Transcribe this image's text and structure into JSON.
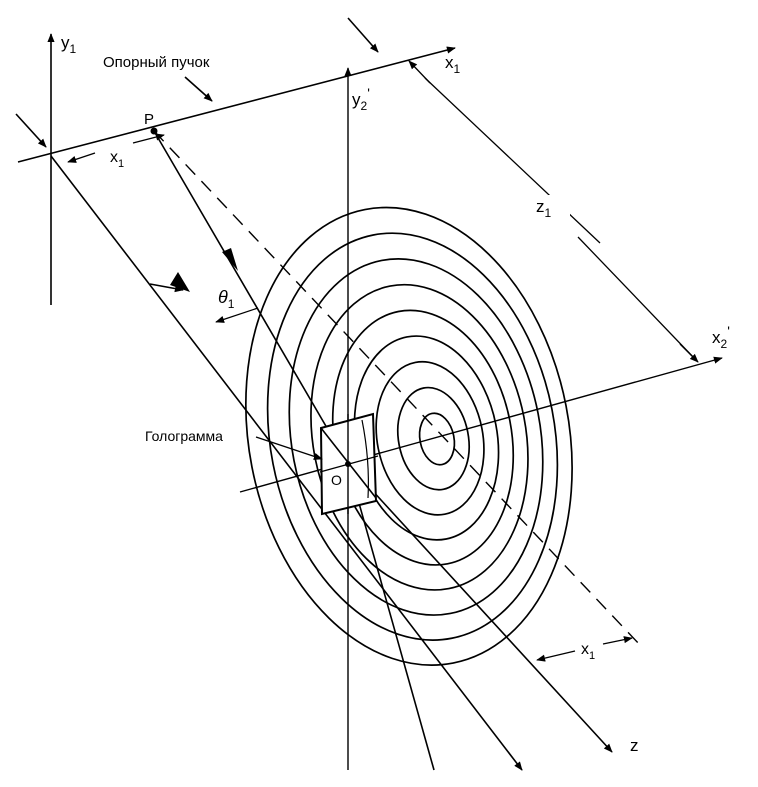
{
  "labels": {
    "y1": "y",
    "y1_sub": "1",
    "x1_axis": "x",
    "x1_axis_sub": "1",
    "reference_beam": "Опорный пучок",
    "point_p": "P",
    "x1_offset_top": "x",
    "x1_offset_top_sub": "1",
    "y2p": "y",
    "y2p_sub": "2",
    "y2p_prime": "'",
    "z1": "z",
    "z1_sub": "1",
    "theta": "θ",
    "theta_sub": "1",
    "x2p": "x",
    "x2p_sub": "2",
    "x2p_prime": "'",
    "hologram": "Голограмма",
    "origin_o": "O",
    "x1_offset_bottom": "x",
    "x1_offset_bottom_sub": "1",
    "z_axis": "z"
  },
  "rings": {
    "count": 9
  }
}
